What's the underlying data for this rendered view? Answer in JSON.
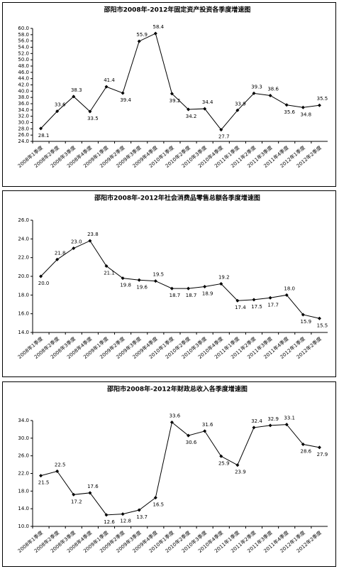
{
  "chart_data": [
    {
      "type": "line",
      "title": "邵阳市2008年-2012年固定资产投资各季度增速图",
      "categories": [
        "2008年1季度",
        "2008年2季度",
        "2008年3季度",
        "2008年4季度",
        "2009年1季度",
        "2009年2季度",
        "2009年3季度",
        "2009年4季度",
        "2010年1季度",
        "2010年2季度",
        "2010年3季度",
        "2010年4季度",
        "2011年1季度",
        "2011年2季度",
        "2011年3季度",
        "2011年4季度",
        "2012年1季度",
        "2012年2季度"
      ],
      "values": [
        28.1,
        33.6,
        38.3,
        33.5,
        41.4,
        39.4,
        55.9,
        58.4,
        39.2,
        34.2,
        34.4,
        27.7,
        33.9,
        39.3,
        38.6,
        35.6,
        34.8,
        35.5
      ],
      "color": "#000000",
      "ylim": [
        24,
        60
      ],
      "yticks": [
        {
          "value": 24,
          "label": "24.0"
        },
        {
          "value": 26,
          "label": "26.0"
        },
        {
          "value": 28,
          "label": "28.0"
        },
        {
          "value": 30,
          "label": "30.0"
        },
        {
          "value": 32,
          "label": "32.0"
        },
        {
          "value": 34,
          "label": "34.0"
        },
        {
          "value": 36,
          "label": "36.0"
        },
        {
          "value": 38,
          "label": "38.0"
        },
        {
          "value": 40,
          "label": "40.0"
        },
        {
          "value": 42,
          "label": "42.0"
        },
        {
          "value": 44,
          "label": "44.0"
        },
        {
          "value": 46,
          "label": "46.0"
        },
        {
          "value": 48,
          "label": "48.0"
        },
        {
          "value": 50,
          "label": "50.0"
        },
        {
          "value": 52,
          "label": "52.0"
        },
        {
          "value": 54,
          "label": "54.0"
        },
        {
          "value": 56,
          "label": "56.0"
        },
        {
          "value": 58,
          "label": "58.0"
        },
        {
          "value": 60,
          "label": "60.0"
        }
      ]
    },
    {
      "type": "line",
      "title": "邵阳市2008年-2012年社会消费品零售总额各季度增速图",
      "categories": [
        "2008年1季度",
        "2008年2季度",
        "2008年3季度",
        "2008年4季度",
        "2009年1季度",
        "2009年2季度",
        "2009年3季度",
        "2009年4季度",
        "2010年1季度",
        "2010年2季度",
        "2010年3季度",
        "2010年4季度",
        "2011年1季度",
        "2011年2季度",
        "2011年3季度",
        "2011年4季度",
        "2012年1季度",
        "2012年2季度"
      ],
      "values": [
        20.0,
        21.8,
        23.0,
        23.8,
        21.1,
        19.8,
        19.6,
        19.5,
        18.7,
        18.7,
        18.9,
        19.2,
        17.4,
        17.5,
        17.7,
        18.0,
        15.9,
        15.5
      ],
      "value_labels": [
        "20.0",
        "21.8",
        "23.0",
        "23.8",
        "21.1",
        "19.8",
        "19.6",
        "19.5",
        "18.7",
        "18.7",
        "18.9",
        "19.2",
        "17.4",
        "17.5",
        "17.7",
        "18.0",
        "15.9",
        "15.5"
      ],
      "color": "#000000",
      "ylim": [
        14,
        26
      ],
      "yticks": [
        {
          "value": 14,
          "label": "14.0"
        },
        {
          "value": 16,
          "label": "16.0"
        },
        {
          "value": 18,
          "label": "18.0"
        },
        {
          "value": 20,
          "label": "20.0"
        },
        {
          "value": 22,
          "label": "22.0"
        },
        {
          "value": 24,
          "label": "24.0"
        },
        {
          "value": 26,
          "label": "26.0"
        }
      ]
    },
    {
      "type": "line",
      "title": "邵阳市2008年-2012年财政总收入各季度增速图",
      "categories": [
        "2008年1季度",
        "2008年2季度",
        "2008年3季度",
        "2008年4季度",
        "2009年1季度",
        "2009年2季度",
        "2009年3季度",
        "2009年4季度",
        "2010年1季度",
        "2010年2季度",
        "2010年3季度",
        "2010年4季度",
        "2011年1季度",
        "2011年2季度",
        "2011年3季度",
        "2011年4季度",
        "2012年1季度",
        "2012年2季度"
      ],
      "values": [
        21.5,
        22.5,
        17.2,
        17.6,
        12.6,
        12.8,
        13.7,
        16.5,
        33.6,
        30.6,
        31.6,
        25.9,
        23.9,
        32.4,
        32.9,
        33.1,
        28.6,
        27.9
      ],
      "color": "#000000",
      "ylim": [
        10,
        34
      ],
      "yticks": [
        {
          "value": 10,
          "label": "10.0"
        },
        {
          "value": 14,
          "label": "14.0"
        },
        {
          "value": 18,
          "label": "18.0"
        },
        {
          "value": 22,
          "label": "22.0"
        },
        {
          "value": 26,
          "label": "26.0"
        },
        {
          "value": 30,
          "label": "30.0"
        },
        {
          "value": 34,
          "label": "34.0"
        }
      ]
    }
  ]
}
